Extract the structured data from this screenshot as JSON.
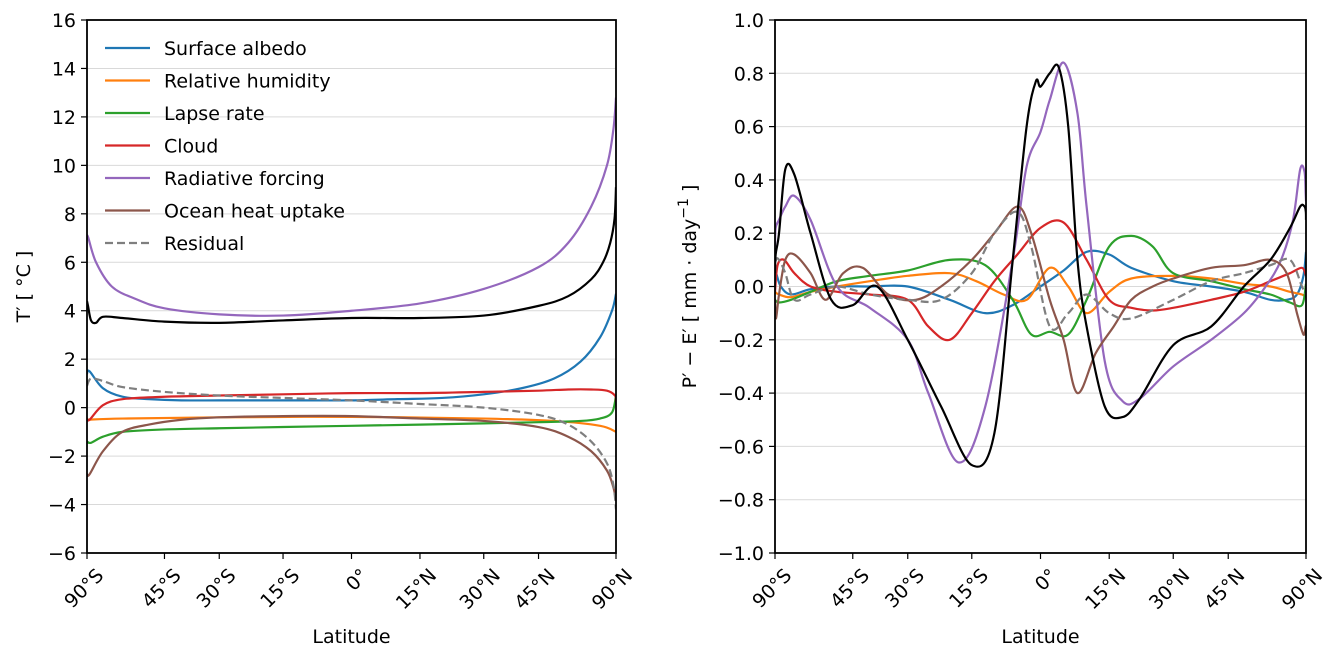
{
  "chart_data": [
    {
      "type": "line",
      "xlabel": "Latitude",
      "ylabel": "T′ [ °C ]",
      "ylim": [
        -6,
        16
      ],
      "yticks": [
        -6,
        -4,
        -2,
        0,
        2,
        4,
        6,
        8,
        10,
        12,
        14,
        16
      ],
      "ytick_labels": [
        "−6",
        "−4",
        "−2",
        "0",
        "2",
        "4",
        "6",
        "8",
        "10",
        "12",
        "14",
        "16"
      ],
      "xticks": [
        "90°S",
        "45°S",
        "30°S",
        "15°S",
        "0°",
        "15°N",
        "30°N",
        "45°N",
        "90°N"
      ],
      "x_axis": "sine of latitude",
      "grid": "horizontal",
      "legend": "top-left",
      "series": [
        {
          "name": "Surface albedo",
          "color": "#1f77b4",
          "x": [
            -90,
            -82,
            -70,
            -60,
            -50,
            -40,
            -30,
            -20,
            -10,
            0,
            10,
            20,
            30,
            40,
            50,
            60,
            70,
            80,
            90
          ],
          "y": [
            1.4,
            1.5,
            0.8,
            0.45,
            0.35,
            0.3,
            0.3,
            0.3,
            0.3,
            0.3,
            0.35,
            0.4,
            0.55,
            0.8,
            1.2,
            1.9,
            2.9,
            4.0,
            4.7
          ]
        },
        {
          "name": "Relative humidity",
          "color": "#ff7f0e",
          "x": [
            -90,
            -60,
            -30,
            0,
            30,
            50,
            70,
            90
          ],
          "y": [
            -0.5,
            -0.45,
            -0.4,
            -0.38,
            -0.45,
            -0.55,
            -0.75,
            -1.0
          ]
        },
        {
          "name": "Lapse rate",
          "color": "#2ca02c",
          "x": [
            -90,
            -80,
            -70,
            -60,
            -45,
            -30,
            -15,
            0,
            15,
            30,
            45,
            60,
            70,
            80,
            90
          ],
          "y": [
            -1.4,
            -1.45,
            -1.2,
            -1.0,
            -0.9,
            -0.85,
            -0.8,
            -0.75,
            -0.7,
            -0.65,
            -0.6,
            -0.55,
            -0.45,
            -0.2,
            0.5
          ]
        },
        {
          "name": "Cloud",
          "color": "#d62728",
          "x": [
            -90,
            -82,
            -70,
            -60,
            -45,
            -30,
            -15,
            0,
            15,
            30,
            45,
            55,
            65,
            75,
            85,
            90
          ],
          "y": [
            -0.45,
            -0.5,
            0.1,
            0.35,
            0.45,
            0.5,
            0.55,
            0.6,
            0.6,
            0.65,
            0.7,
            0.75,
            0.75,
            0.7,
            0.5,
            0.25
          ]
        },
        {
          "name": "Radiative forcing",
          "color": "#9467bd",
          "x": [
            -90,
            -85,
            -75,
            -65,
            -55,
            -45,
            -30,
            -15,
            0,
            15,
            30,
            45,
            55,
            65,
            75,
            82,
            90
          ],
          "y": [
            7.0,
            7.05,
            6.0,
            5.0,
            4.5,
            4.1,
            3.85,
            3.8,
            4.0,
            4.3,
            4.9,
            5.8,
            6.8,
            8.3,
            10.0,
            11.5,
            12.8
          ]
        },
        {
          "name": "Ocean heat uptake",
          "color": "#8c564b",
          "x": [
            -90,
            -82,
            -70,
            -60,
            -50,
            -40,
            -30,
            -15,
            0,
            15,
            30,
            45,
            55,
            65,
            75,
            82,
            90
          ],
          "y": [
            -2.75,
            -2.75,
            -1.8,
            -1.0,
            -0.7,
            -0.5,
            -0.4,
            -0.35,
            -0.35,
            -0.45,
            -0.55,
            -0.8,
            -1.2,
            -1.8,
            -2.6,
            -3.3,
            -3.85
          ]
        },
        {
          "name": "Residual",
          "color": "#7f7f7f",
          "dash": true,
          "x": [
            -90,
            -80,
            -70,
            -60,
            -45,
            -30,
            -15,
            0,
            15,
            30,
            45,
            55,
            65,
            75,
            82,
            90
          ],
          "y": [
            0.9,
            1.2,
            1.1,
            0.85,
            0.65,
            0.5,
            0.4,
            0.3,
            0.15,
            0.0,
            -0.3,
            -0.7,
            -1.4,
            -2.3,
            -3.2,
            -4.2
          ]
        },
        {
          "color": "#000000",
          "x": [
            -90,
            -85,
            -80,
            -75,
            -70,
            -60,
            -45,
            -30,
            -15,
            0,
            15,
            30,
            45,
            55,
            65,
            72,
            78,
            84,
            90
          ],
          "y": [
            4.4,
            4.2,
            3.6,
            3.5,
            3.75,
            3.7,
            3.55,
            3.5,
            3.6,
            3.7,
            3.7,
            3.8,
            4.2,
            4.6,
            5.3,
            6.0,
            6.8,
            7.8,
            9.1
          ]
        }
      ]
    },
    {
      "type": "line",
      "xlabel": "Latitude",
      "ylabel": "P′ − E′ [ mm · day",
      "ylabel_sup": "−1",
      "ylabel_end": " ]",
      "ylim": [
        -1.0,
        1.0
      ],
      "yticks": [
        -1.0,
        -0.8,
        -0.6,
        -0.4,
        -0.2,
        0.0,
        0.2,
        0.4,
        0.6,
        0.8,
        1.0
      ],
      "ytick_labels": [
        "−1.0",
        "−0.8",
        "−0.6",
        "−0.4",
        "−0.2",
        "0.0",
        "0.2",
        "0.4",
        "0.6",
        "0.8",
        "1.0"
      ],
      "xticks": [
        "90°S",
        "45°S",
        "30°S",
        "15°S",
        "0°",
        "15°N",
        "30°N",
        "45°N",
        "90°N"
      ],
      "x_axis": "sine of latitude",
      "grid": "horizontal",
      "series": [
        {
          "color": "#1f77b4",
          "x": [
            -90,
            -85,
            -78,
            -70,
            -60,
            -50,
            -40,
            -30,
            -20,
            -12,
            -6,
            0,
            5,
            10,
            15,
            20,
            30,
            40,
            50,
            60,
            68,
            75,
            82,
            90
          ],
          "y": [
            0.03,
            0.05,
            0.0,
            -0.03,
            -0.01,
            0.0,
            0.0,
            0.0,
            -0.05,
            -0.1,
            -0.07,
            0.0,
            0.06,
            0.13,
            0.12,
            0.07,
            0.02,
            0.0,
            -0.02,
            -0.05,
            -0.05,
            -0.03,
            0.04,
            0.13
          ]
        },
        {
          "color": "#ff7f0e",
          "x": [
            -90,
            -80,
            -70,
            -60,
            -50,
            -40,
            -30,
            -20,
            -14,
            -8,
            -3,
            2,
            6,
            10,
            15,
            20,
            30,
            40,
            50,
            60,
            70,
            80,
            90
          ],
          "y": [
            -0.02,
            -0.03,
            -0.04,
            -0.02,
            0.0,
            0.02,
            0.04,
            0.05,
            0.02,
            -0.03,
            -0.05,
            0.07,
            0.0,
            -0.1,
            -0.02,
            0.03,
            0.04,
            0.03,
            0.01,
            0.0,
            -0.02,
            -0.03,
            -0.04
          ]
        },
        {
          "color": "#2ca02c",
          "x": [
            -90,
            -80,
            -70,
            -60,
            -50,
            -40,
            -30,
            -20,
            -12,
            -6,
            -2,
            2,
            6,
            10,
            15,
            20,
            25,
            30,
            40,
            50,
            60,
            70,
            80,
            90
          ],
          "y": [
            -0.05,
            -0.06,
            -0.05,
            -0.02,
            0.02,
            0.04,
            0.06,
            0.1,
            0.08,
            -0.05,
            -0.18,
            -0.17,
            -0.18,
            -0.05,
            0.15,
            0.19,
            0.15,
            0.05,
            0.02,
            -0.01,
            -0.03,
            -0.06,
            -0.07,
            0.01
          ]
        },
        {
          "color": "#d62728",
          "x": [
            -90,
            -82,
            -75,
            -68,
            -60,
            -50,
            -40,
            -30,
            -25,
            -20,
            -15,
            -10,
            -5,
            0,
            5,
            10,
            15,
            20,
            25,
            30,
            40,
            50,
            60,
            70,
            80,
            90
          ],
          "y": [
            -0.02,
            0.08,
            0.1,
            0.05,
            0.0,
            -0.02,
            -0.03,
            -0.05,
            -0.15,
            -0.2,
            -0.1,
            0.02,
            0.12,
            0.22,
            0.24,
            0.1,
            -0.05,
            -0.08,
            -0.09,
            -0.08,
            -0.05,
            -0.02,
            0.02,
            0.05,
            0.07,
            0.04
          ]
        },
        {
          "color": "#9467bd",
          "x": [
            -90,
            -86,
            -80,
            -74,
            -68,
            -60,
            -50,
            -40,
            -30,
            -25,
            -18,
            -12,
            -6,
            -3,
            0,
            2,
            5,
            8,
            10,
            14,
            18,
            22,
            30,
            40,
            50,
            58,
            65,
            72,
            78,
            84,
            87,
            90
          ],
          "y": [
            0.15,
            0.22,
            0.25,
            0.3,
            0.34,
            0.25,
            0.0,
            -0.08,
            -0.2,
            -0.4,
            -0.66,
            -0.45,
            0.1,
            0.45,
            0.58,
            0.7,
            0.84,
            0.65,
            0.3,
            -0.28,
            -0.43,
            -0.42,
            -0.3,
            -0.2,
            -0.1,
            0.0,
            0.1,
            0.25,
            0.44,
            0.43,
            0.35,
            0.32
          ]
        },
        {
          "color": "#8c564b",
          "x": [
            -90,
            -85,
            -80,
            -74,
            -68,
            -60,
            -54,
            -48,
            -42,
            -35,
            -28,
            -22,
            -15,
            -10,
            -5,
            -2,
            2,
            5,
            8,
            12,
            16,
            20,
            25,
            30,
            40,
            50,
            60,
            68,
            75,
            82,
            87,
            90
          ],
          "y": [
            -0.05,
            -0.12,
            -0.03,
            0.1,
            0.12,
            0.05,
            -0.05,
            0.05,
            0.07,
            -0.03,
            -0.05,
            0.0,
            0.1,
            0.2,
            0.3,
            0.2,
            -0.05,
            -0.2,
            -0.4,
            -0.25,
            -0.15,
            -0.05,
            0.0,
            0.03,
            0.07,
            0.08,
            0.1,
            0.05,
            -0.1,
            -0.18,
            -0.15,
            -0.15
          ]
        },
        {
          "color": "#7f7f7f",
          "dash": true,
          "x": [
            -90,
            -85,
            -80,
            -74,
            -68,
            -60,
            -50,
            -40,
            -30,
            -22,
            -15,
            -10,
            -5,
            -2,
            2,
            6,
            10,
            15,
            20,
            30,
            40,
            50,
            60,
            70,
            80,
            90
          ],
          "y": [
            0.05,
            0.1,
            0.1,
            0.05,
            -0.05,
            -0.03,
            0.0,
            -0.03,
            -0.05,
            -0.05,
            0.05,
            0.2,
            0.28,
            0.15,
            -0.15,
            -0.1,
            -0.03,
            -0.1,
            -0.12,
            -0.05,
            0.02,
            0.05,
            0.08,
            0.1,
            0.0,
            -0.03
          ]
        },
        {
          "color": "#000000",
          "x": [
            -90,
            -86,
            -80,
            -74,
            -68,
            -60,
            -52,
            -45,
            -38,
            -30,
            -22,
            -15,
            -10,
            -6,
            -3,
            -1,
            0,
            2,
            4,
            6,
            8,
            10,
            14,
            18,
            22,
            30,
            40,
            50,
            60,
            70,
            78,
            84,
            88,
            90
          ],
          "y": [
            0.05,
            0.12,
            0.2,
            0.44,
            0.42,
            0.2,
            -0.05,
            -0.07,
            0.0,
            -0.2,
            -0.45,
            -0.67,
            -0.55,
            0.1,
            0.6,
            0.77,
            0.75,
            0.8,
            0.82,
            0.6,
            0.1,
            -0.15,
            -0.45,
            -0.49,
            -0.42,
            -0.22,
            -0.15,
            0.0,
            0.1,
            0.22,
            0.3,
            0.3,
            0.28,
            0.25
          ]
        }
      ]
    }
  ]
}
